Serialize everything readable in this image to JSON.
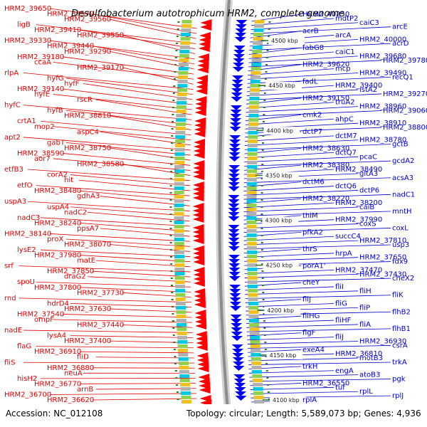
{
  "title": "Desulfobacterium autotrophicum HRM2, complete genome",
  "accession": "Accession: NC_012108",
  "topology": "Topology: circular; Length: 5,589,073 bp; Genes: 4,936",
  "colors": {
    "left_label": "#e00000",
    "right_label": "#0000c8",
    "forward_strand": "#ff0000",
    "reverse_strand": "#0000ff",
    "backbone": "#909090",
    "tick": "#2a7a2a"
  },
  "ticks": [
    "4500 kbp",
    "4450 kbp",
    "4400 kbp",
    "4350 kbp",
    "4300 kbp",
    "4250 kbp",
    "4200 kbp",
    "4150 kbp",
    "4100 kbp"
  ],
  "left_labels": [
    "HRM2_39650",
    "HRM2_39570",
    "HRM2_39560",
    "ligB",
    "HRM2_39410",
    "HRM2_39550",
    "HRM2_39330",
    "HRM2_39440",
    "HRM2_39290",
    "HRM2_39180",
    "ccaA",
    "HRM2_39170",
    "rlpA",
    "hyfG",
    "hyfF",
    "HRM2_39140",
    "hyfE",
    "rscR",
    "hyfC",
    "hyfB",
    "HRM2_38810",
    "crtA1",
    "mop2",
    "aspC4",
    "apt2",
    "gabT",
    "HRM2_38750",
    "HRM2_38590",
    "aor7",
    "HRM2_38580",
    "etfB3",
    "corA2",
    "hit",
    "etfO",
    "HRM2_38480",
    "gdhA3",
    "uspA3",
    "uspA4",
    "nadC2",
    "nadC3",
    "HRM2_38240",
    "ppsA7",
    "HRM2_38140",
    "proX",
    "HRM2_38070",
    "lysE2",
    "HRM2_37980",
    "matE",
    "srf",
    "HRM2_37850",
    "draG2",
    "spoU",
    "HRM2_37800",
    "HRM2_37730",
    "rnd",
    "hdrD4",
    "HRM2_37630",
    "HRM2_37540",
    "ompF",
    "HRM2_37440",
    "nadE",
    "lysA4",
    "HRM2_37400",
    "flaG",
    "HRM2_36910",
    "fliD",
    "fliS",
    "HRM2_36880",
    "neuA",
    "hisH2",
    "HRM2_36770",
    "arnB",
    "HRM2_36700",
    "HRM2_36620"
  ],
  "right_labels": [
    "HRM2_40250",
    "mdtP2",
    "caiC3",
    "arcE",
    "acrB",
    "arcA",
    "HRM2_40000",
    "acrD",
    "fabG8",
    "caiC1",
    "HRM2_39680",
    "HRM2_39780",
    "HRM2_39620",
    "mcp",
    "HRM2_39490",
    "recQ1",
    "fadL",
    "HRM2_39400",
    "istA2",
    "HRM2_39270",
    "HRM2_39150",
    "truA2",
    "HRM2_38960",
    "HRM2_39060",
    "cmk2",
    "ahpC",
    "HRM2_38910",
    "HRM2_38800",
    "dctP7",
    "dctM7",
    "HRM2_38780",
    "gctB",
    "HRM2_38630",
    "dctQ7",
    "pcaC",
    "gcdA2",
    "HRM2_38380",
    "HRM2_38490",
    "gltA3",
    "acsA3",
    "dctM6",
    "dctQ6",
    "dctP6",
    "nadC1",
    "HRM2_38220",
    "HRM2_38200",
    "caiB",
    "mntH",
    "thiM",
    "HRM2_37990",
    "coxS",
    "coxL",
    "pfkA2",
    "succC4",
    "HRM2_37810",
    "usp3",
    "thrS",
    "hrpA",
    "HRM2_37650",
    "fdx9",
    "porA1'",
    "HRM2_37470",
    "HRM2_37430",
    "cheX2",
    "cheY",
    "fliI",
    "fliH",
    "fliK",
    "fliJ",
    "fliG",
    "fliP",
    "flhB2",
    "fliHG",
    "fliHF",
    "fliA",
    "flhB1",
    "flgF",
    "fliJ",
    "HRM2_36930",
    "csrA",
    "exeA4",
    "HRM2_36810",
    "motB3",
    "trkA",
    "trkH",
    "engA",
    "atoB3",
    "pgk",
    "HRM2_36550",
    "tuf",
    "rplL",
    "rplJ",
    "rplA"
  ]
}
